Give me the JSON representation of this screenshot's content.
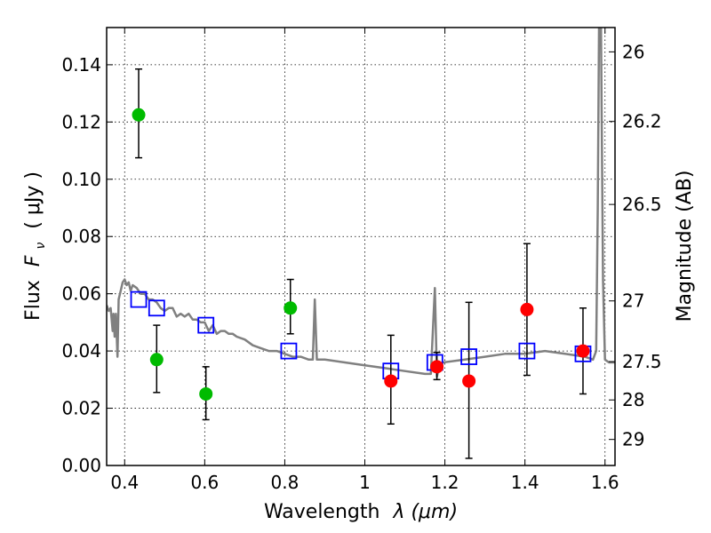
{
  "chart_data": {
    "type": "scatter",
    "title": "",
    "xlabel": "Wavelength",
    "xlabel_math": "λ (μm)",
    "ylabel": "Flux",
    "ylabel_math": "F",
    "ylabel_sub": "ν",
    "ylabel_unit": "( μJy )",
    "y2label": "Magnitude (AB)",
    "xlim": [
      0.355,
      1.625
    ],
    "ylim": [
      0.0,
      0.153
    ],
    "grid": true,
    "x_ticks": [
      0.4,
      0.6,
      0.8,
      1.0,
      1.2,
      1.4,
      1.6
    ],
    "x_tick_labels": [
      "0.4",
      "0.6",
      "0.8",
      "1",
      "1.2",
      "1.4",
      "1.6"
    ],
    "y_ticks": [
      0.0,
      0.02,
      0.04,
      0.06,
      0.08,
      0.1,
      0.12,
      0.14
    ],
    "y_tick_labels": [
      "0.00",
      "0.02",
      "0.04",
      "0.06",
      "0.08",
      "0.10",
      "0.12",
      "0.14"
    ],
    "y2_ticks": [
      {
        "flux": 0.1445,
        "label": "26"
      },
      {
        "flux": 0.1202,
        "label": "26.2"
      },
      {
        "flux": 0.0912,
        "label": "26.5"
      },
      {
        "flux": 0.0575,
        "label": "27"
      },
      {
        "flux": 0.0363,
        "label": "27.5"
      },
      {
        "flux": 0.0229,
        "label": "28"
      },
      {
        "flux": 0.0091,
        "label": "29"
      }
    ],
    "series": [
      {
        "name": "model-spectrum",
        "kind": "line",
        "color": "#808080",
        "x": [
          0.355,
          0.36,
          0.365,
          0.37,
          0.372,
          0.375,
          0.378,
          0.382,
          0.385,
          0.39,
          0.395,
          0.4,
          0.405,
          0.41,
          0.415,
          0.42,
          0.43,
          0.44,
          0.45,
          0.46,
          0.47,
          0.48,
          0.49,
          0.5,
          0.51,
          0.52,
          0.53,
          0.54,
          0.55,
          0.56,
          0.57,
          0.58,
          0.59,
          0.6,
          0.61,
          0.62,
          0.63,
          0.64,
          0.65,
          0.66,
          0.67,
          0.68,
          0.7,
          0.72,
          0.74,
          0.76,
          0.78,
          0.8,
          0.82,
          0.84,
          0.86,
          0.87,
          0.875,
          0.88,
          0.9,
          0.95,
          1.0,
          1.05,
          1.1,
          1.15,
          1.165,
          1.175,
          1.18,
          1.185,
          1.195,
          1.25,
          1.3,
          1.35,
          1.4,
          1.45,
          1.5,
          1.55,
          1.57,
          1.578,
          1.582,
          1.585,
          1.59,
          1.595,
          1.6,
          1.61,
          1.625
        ],
        "y": [
          0.056,
          0.054,
          0.055,
          0.047,
          0.053,
          0.045,
          0.053,
          0.038,
          0.058,
          0.061,
          0.064,
          0.065,
          0.063,
          0.064,
          0.061,
          0.063,
          0.062,
          0.06,
          0.06,
          0.058,
          0.058,
          0.057,
          0.055,
          0.054,
          0.055,
          0.055,
          0.052,
          0.053,
          0.052,
          0.053,
          0.051,
          0.051,
          0.05,
          0.05,
          0.047,
          0.049,
          0.046,
          0.047,
          0.047,
          0.046,
          0.046,
          0.045,
          0.044,
          0.042,
          0.041,
          0.04,
          0.04,
          0.039,
          0.038,
          0.038,
          0.037,
          0.037,
          0.058,
          0.037,
          0.037,
          0.036,
          0.035,
          0.034,
          0.033,
          0.032,
          0.032,
          0.062,
          0.031,
          0.034,
          0.036,
          0.037,
          0.038,
          0.039,
          0.039,
          0.04,
          0.039,
          0.038,
          0.037,
          0.04,
          0.09,
          0.153,
          0.153,
          0.065,
          0.037,
          0.036,
          0.036
        ]
      },
      {
        "name": "model-photometry",
        "kind": "open-square",
        "color": "#0000ff",
        "x": [
          0.435,
          0.48,
          0.603,
          0.81,
          1.065,
          1.175,
          1.26,
          1.405,
          1.545
        ],
        "y": [
          0.058,
          0.055,
          0.049,
          0.04,
          0.033,
          0.036,
          0.038,
          0.04,
          0.039
        ]
      },
      {
        "name": "observed-hst-bands",
        "kind": "filled-circle",
        "color": "#00bb00",
        "x": [
          0.435,
          0.48,
          0.603,
          0.814
        ],
        "y": [
          0.1225,
          0.037,
          0.025,
          0.055
        ],
        "yerr_low": [
          0.1075,
          0.0255,
          0.016,
          0.046
        ],
        "yerr_high": [
          0.1385,
          0.049,
          0.0345,
          0.065
        ]
      },
      {
        "name": "observed-nir-bands",
        "kind": "filled-circle",
        "color": "#ff0000",
        "x": [
          1.065,
          1.18,
          1.26,
          1.405,
          1.545
        ],
        "y": [
          0.0295,
          0.0345,
          0.0295,
          0.0545,
          0.04
        ],
        "yerr_low": [
          0.0145,
          0.03,
          0.0025,
          0.0315,
          0.025
        ],
        "yerr_high": [
          0.0455,
          0.0395,
          0.057,
          0.0775,
          0.055
        ]
      }
    ]
  }
}
